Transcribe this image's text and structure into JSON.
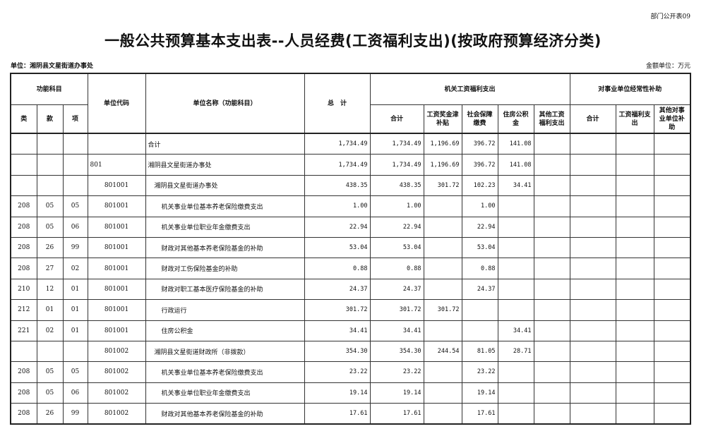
{
  "form_no": "部门公开表09",
  "title": "一般公共预算基本支出表--人员经费(工资福利支出)(按政府预算经济分类)",
  "unit": "单位：湘阴县文星街道办事处",
  "money_unit": "金额单位：万元",
  "headers": {
    "func_subject": "功能科目",
    "lei": "类",
    "kuan": "款",
    "xiang": "项",
    "unit_code": "单位代码",
    "unit_name": "单位名称（功能科目）",
    "total": "总　计",
    "org_welfare": "机关工资福利支出",
    "org_sub": [
      "合计",
      "工资奖金津补贴",
      "社会保障缴费",
      "住房公积金",
      "其他工资福利支出"
    ],
    "inst_subsidy": "对事业单位经常性补助",
    "inst_sub": [
      "合计",
      "工资福利支出",
      "其他对事业单位补助"
    ]
  },
  "rows": [
    {
      "lei": "",
      "kuan": "",
      "xiang": "",
      "code": "",
      "name": "合计",
      "level": 0,
      "total": "1,734.49",
      "org_total": "1,734.49",
      "wage": "1,196.69",
      "social": "396.72",
      "housing": "141.08",
      "other": "",
      "inst_total": "",
      "inst_wage": "",
      "inst_other": ""
    },
    {
      "lei": "",
      "kuan": "",
      "xiang": "",
      "code": "801",
      "name": "湘阴县文星街道办事处",
      "level": 0,
      "total": "1,734.49",
      "org_total": "1,734.49",
      "wage": "1,196.69",
      "social": "396.72",
      "housing": "141.08",
      "other": "",
      "inst_total": "",
      "inst_wage": "",
      "inst_other": ""
    },
    {
      "lei": "",
      "kuan": "",
      "xiang": "",
      "code": "801001",
      "name": "湘阴县文星街道办事处",
      "level": 1,
      "total": "438.35",
      "org_total": "438.35",
      "wage": "301.72",
      "social": "102.23",
      "housing": "34.41",
      "other": "",
      "inst_total": "",
      "inst_wage": "",
      "inst_other": ""
    },
    {
      "lei": "208",
      "kuan": "05",
      "xiang": "05",
      "code": "801001",
      "name": "机关事业单位基本养老保险缴费支出",
      "level": 2,
      "total": "1.00",
      "org_total": "1.00",
      "wage": "",
      "social": "1.00",
      "housing": "",
      "other": "",
      "inst_total": "",
      "inst_wage": "",
      "inst_other": ""
    },
    {
      "lei": "208",
      "kuan": "05",
      "xiang": "06",
      "code": "801001",
      "name": "机关事业单位职业年金缴费支出",
      "level": 2,
      "total": "22.94",
      "org_total": "22.94",
      "wage": "",
      "social": "22.94",
      "housing": "",
      "other": "",
      "inst_total": "",
      "inst_wage": "",
      "inst_other": ""
    },
    {
      "lei": "208",
      "kuan": "26",
      "xiang": "99",
      "code": "801001",
      "name": "财政对其他基本养老保险基金的补助",
      "level": 2,
      "total": "53.04",
      "org_total": "53.04",
      "wage": "",
      "social": "53.04",
      "housing": "",
      "other": "",
      "inst_total": "",
      "inst_wage": "",
      "inst_other": ""
    },
    {
      "lei": "208",
      "kuan": "27",
      "xiang": "02",
      "code": "801001",
      "name": "财政对工伤保险基金的补助",
      "level": 2,
      "total": "0.88",
      "org_total": "0.88",
      "wage": "",
      "social": "0.88",
      "housing": "",
      "other": "",
      "inst_total": "",
      "inst_wage": "",
      "inst_other": ""
    },
    {
      "lei": "210",
      "kuan": "12",
      "xiang": "01",
      "code": "801001",
      "name": "财政对职工基本医疗保险基金的补助",
      "level": 2,
      "total": "24.37",
      "org_total": "24.37",
      "wage": "",
      "social": "24.37",
      "housing": "",
      "other": "",
      "inst_total": "",
      "inst_wage": "",
      "inst_other": ""
    },
    {
      "lei": "212",
      "kuan": "01",
      "xiang": "01",
      "code": "801001",
      "name": "行政运行",
      "level": 2,
      "total": "301.72",
      "org_total": "301.72",
      "wage": "301.72",
      "social": "",
      "housing": "",
      "other": "",
      "inst_total": "",
      "inst_wage": "",
      "inst_other": ""
    },
    {
      "lei": "221",
      "kuan": "02",
      "xiang": "01",
      "code": "801001",
      "name": "住房公积金",
      "level": 2,
      "total": "34.41",
      "org_total": "34.41",
      "wage": "",
      "social": "",
      "housing": "34.41",
      "other": "",
      "inst_total": "",
      "inst_wage": "",
      "inst_other": ""
    },
    {
      "lei": "",
      "kuan": "",
      "xiang": "",
      "code": "801002",
      "name": "湘阴县文星街道财政所（非拨款）",
      "level": 1,
      "total": "354.30",
      "org_total": "354.30",
      "wage": "244.54",
      "social": "81.05",
      "housing": "28.71",
      "other": "",
      "inst_total": "",
      "inst_wage": "",
      "inst_other": ""
    },
    {
      "lei": "208",
      "kuan": "05",
      "xiang": "05",
      "code": "801002",
      "name": "机关事业单位基本养老保险缴费支出",
      "level": 2,
      "total": "23.22",
      "org_total": "23.22",
      "wage": "",
      "social": "23.22",
      "housing": "",
      "other": "",
      "inst_total": "",
      "inst_wage": "",
      "inst_other": ""
    },
    {
      "lei": "208",
      "kuan": "05",
      "xiang": "06",
      "code": "801002",
      "name": "机关事业单位职业年金缴费支出",
      "level": 2,
      "total": "19.14",
      "org_total": "19.14",
      "wage": "",
      "social": "19.14",
      "housing": "",
      "other": "",
      "inst_total": "",
      "inst_wage": "",
      "inst_other": ""
    },
    {
      "lei": "208",
      "kuan": "26",
      "xiang": "99",
      "code": "801002",
      "name": "财政对其他基本养老保险基金的补助",
      "level": 2,
      "total": "17.61",
      "org_total": "17.61",
      "wage": "",
      "social": "17.61",
      "housing": "",
      "other": "",
      "inst_total": "",
      "inst_wage": "",
      "inst_other": ""
    }
  ]
}
